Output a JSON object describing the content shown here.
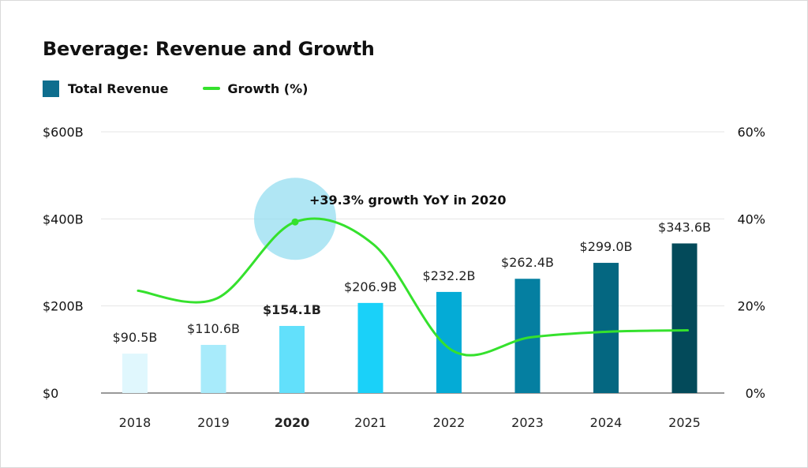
{
  "chart_data": {
    "type": "bar",
    "title": "Beverage: Revenue and Growth",
    "categories": [
      "2018",
      "2019",
      "2020",
      "2021",
      "2022",
      "2023",
      "2024",
      "2025"
    ],
    "highlight_category": "2020",
    "series": [
      {
        "name": "Total Revenue",
        "type": "bar",
        "axis": "left",
        "values": [
          90.5,
          110.6,
          154.1,
          206.9,
          232.2,
          262.4,
          299.0,
          343.6
        ],
        "labels": [
          "$90.5B",
          "$110.6B",
          "$154.1B",
          "$206.9B",
          "$232.2B",
          "$262.4B",
          "$299.0B",
          "$343.6B"
        ],
        "colors": [
          "#e0f7fd",
          "#a8ebfb",
          "#62e0fb",
          "#1ad1f9",
          "#04abd6",
          "#057fa1",
          "#046781",
          "#034a5a"
        ]
      },
      {
        "name": "Growth (%)",
        "type": "line",
        "axis": "right",
        "values": [
          23.5,
          21.7,
          39.3,
          34.1,
          9.8,
          12.8,
          14.1,
          14.4
        ],
        "color": "#35e12d"
      }
    ],
    "y_left": {
      "min": 0,
      "max": 600,
      "ticks": [
        0,
        200,
        400,
        600
      ],
      "tick_labels": [
        "$0",
        "$200B",
        "$400B",
        "$600B"
      ]
    },
    "y_right": {
      "min": 0,
      "max": 60,
      "ticks": [
        0,
        20,
        40,
        60
      ],
      "tick_labels": [
        "0%",
        "20%",
        "40%",
        "60%"
      ]
    },
    "annotation": {
      "category": "2020",
      "text": "+39.3% growth YoY in 2020"
    },
    "grid": true,
    "legend_position": "top-left"
  }
}
